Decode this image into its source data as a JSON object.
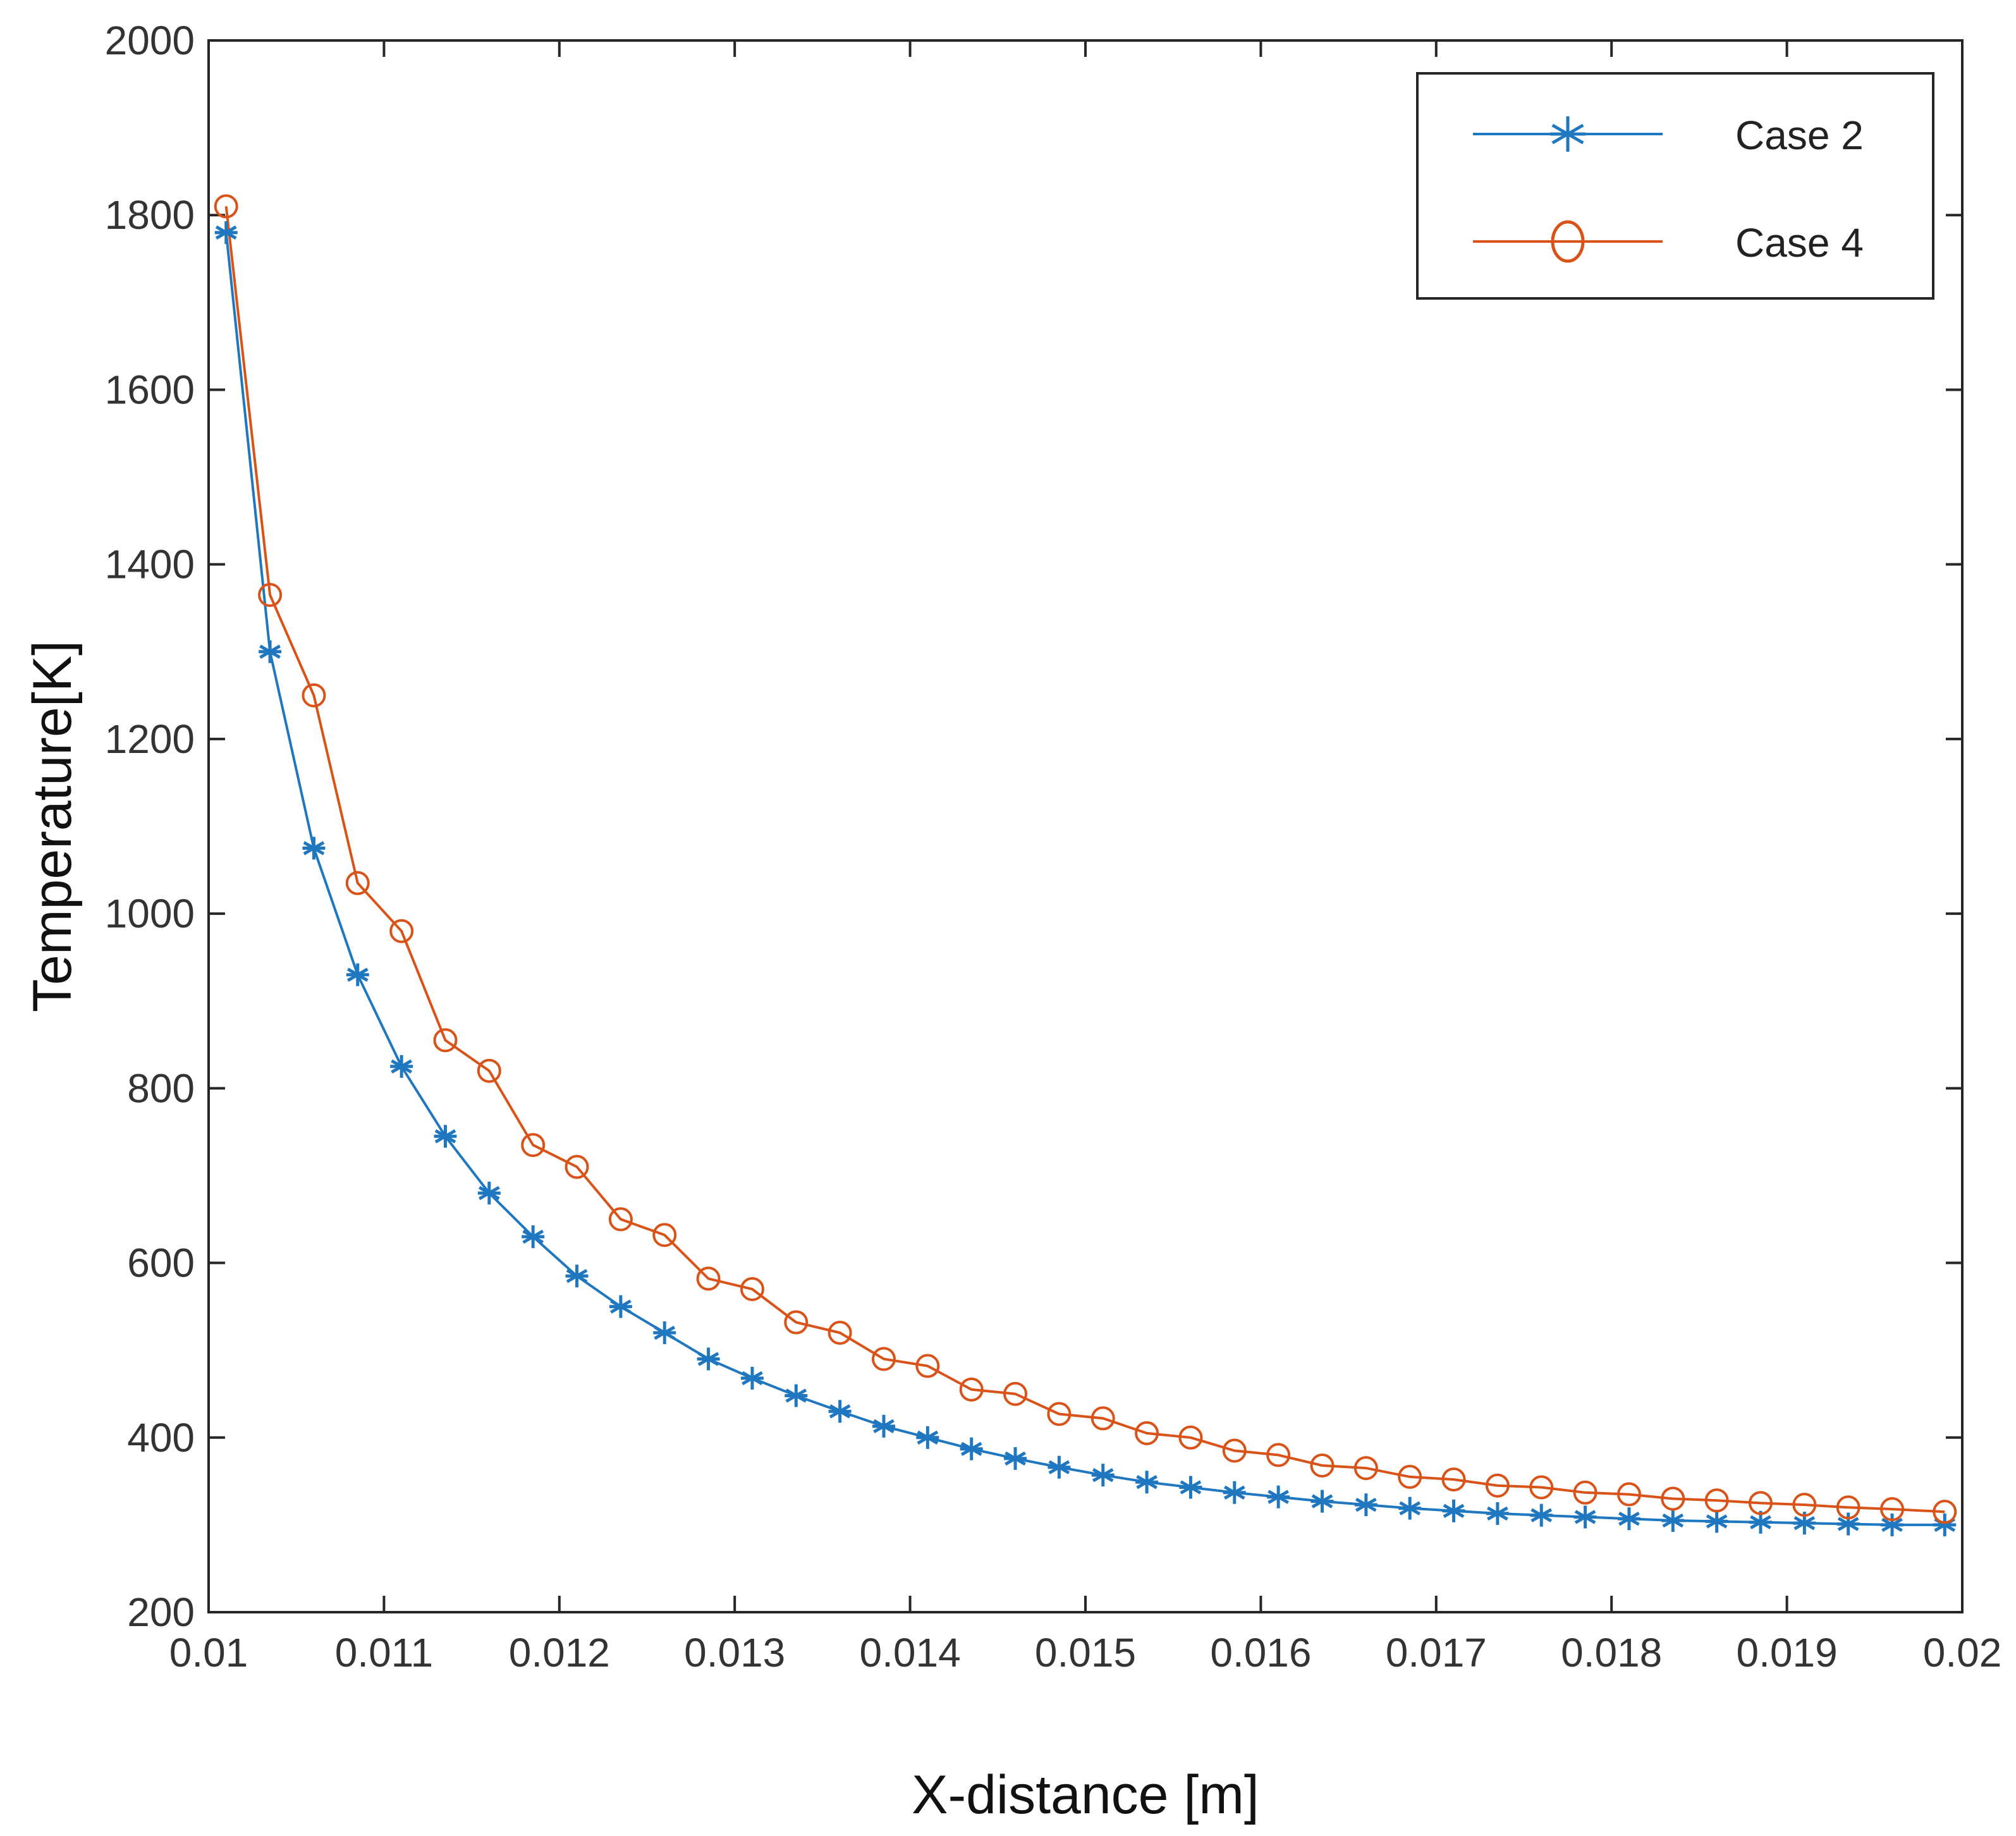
{
  "chart_data": {
    "type": "line",
    "title": "",
    "xlabel": "X-distance [m]",
    "ylabel": "Temperature[K]",
    "xlim": [
      0.01,
      0.02
    ],
    "ylim": [
      200,
      2000
    ],
    "xticks": [
      0.01,
      0.011,
      0.012,
      0.013,
      0.014,
      0.015,
      0.016,
      0.017,
      0.018,
      0.019,
      0.02
    ],
    "xtick_labels": [
      "0.01",
      "0.011",
      "0.012",
      "0.013",
      "0.014",
      "0.015",
      "0.016",
      "0.017",
      "0.018",
      "0.019",
      "0.02"
    ],
    "yticks": [
      200,
      400,
      600,
      800,
      1000,
      1200,
      1400,
      1600,
      1800,
      2000
    ],
    "ytick_labels": [
      "200",
      "400",
      "600",
      "800",
      "1000",
      "1200",
      "1400",
      "1600",
      "1800",
      "2000"
    ],
    "grid": false,
    "legend_position": "top-right",
    "x": [
      0.0101,
      0.01035,
      0.0106,
      0.01085,
      0.0111,
      0.01135,
      0.0116,
      0.01185,
      0.0121,
      0.01235,
      0.0126,
      0.01285,
      0.0131,
      0.01335,
      0.0136,
      0.01385,
      0.0141,
      0.01435,
      0.0146,
      0.01485,
      0.0151,
      0.01535,
      0.0156,
      0.01585,
      0.0161,
      0.01635,
      0.0166,
      0.01685,
      0.0171,
      0.01735,
      0.0176,
      0.01785,
      0.0181,
      0.01835,
      0.0186,
      0.01885,
      0.0191,
      0.01935,
      0.0196,
      0.0199
    ],
    "series": [
      {
        "name": "Case 2",
        "color": "#1f77c0",
        "marker": "asterisk",
        "values": [
          1780,
          1300,
          1075,
          930,
          825,
          745,
          680,
          630,
          585,
          550,
          520,
          490,
          468,
          448,
          430,
          413,
          400,
          387,
          376,
          366,
          357,
          349,
          343,
          337,
          332,
          327,
          323,
          319,
          316,
          313,
          311,
          309,
          307,
          305,
          304,
          303,
          302,
          301,
          300,
          300
        ]
      },
      {
        "name": "Case 4",
        "color": "#d95319",
        "marker": "circle",
        "values": [
          1810,
          1365,
          1250,
          1035,
          980,
          855,
          820,
          735,
          710,
          650,
          632,
          582,
          570,
          532,
          520,
          490,
          482,
          455,
          450,
          427,
          422,
          405,
          400,
          385,
          380,
          368,
          365,
          355,
          352,
          345,
          343,
          337,
          335,
          330,
          328,
          325,
          323,
          320,
          318,
          315
        ]
      }
    ]
  }
}
